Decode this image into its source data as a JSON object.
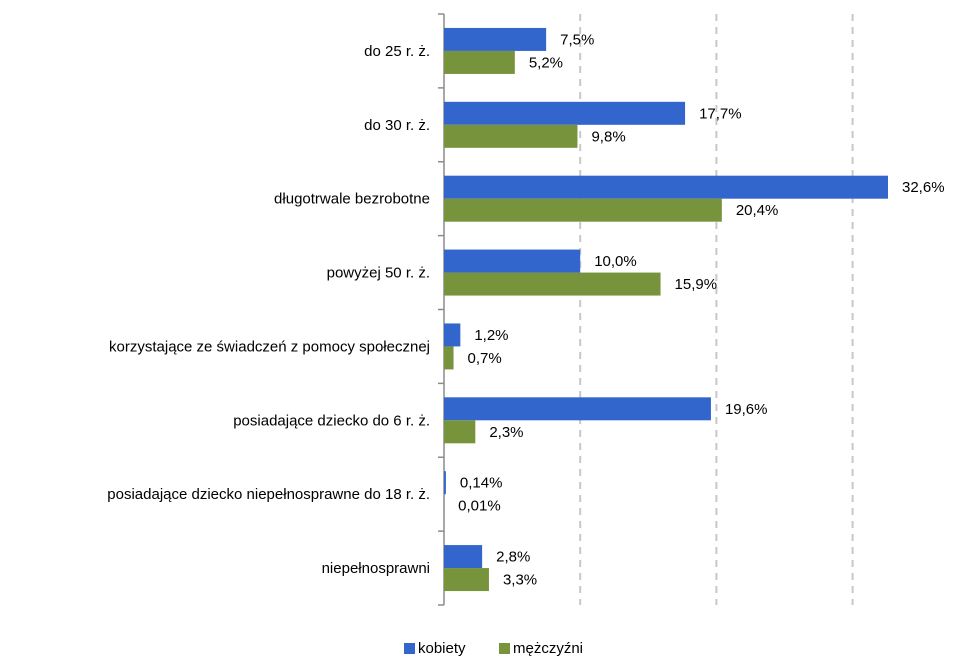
{
  "chart_data": {
    "type": "bar",
    "orientation": "horizontal",
    "categories": [
      "do 25 r. ż.",
      "do 30 r. ż.",
      "długotrwale bezrobotne",
      "powyżej 50 r. ż.",
      "korzystające ze świadczeń z pomocy społecznej",
      "posiadające dziecko do 6 r. ż.",
      "posiadające dziecko niepełnosprawne do 18 r. ż.",
      "niepełnosprawni"
    ],
    "series": [
      {
        "name": "kobiety",
        "color": "#3366cc",
        "values": [
          7.5,
          17.7,
          32.6,
          10.0,
          1.2,
          19.6,
          0.14,
          2.8
        ],
        "labels": [
          "7,5%",
          "17,7%",
          "32,6%",
          "10,0%",
          "1,2%",
          "19,6%",
          "0,14%",
          "2,8%"
        ]
      },
      {
        "name": "mężczyźni",
        "color": "#77933c",
        "values": [
          5.2,
          9.8,
          20.4,
          15.9,
          0.7,
          2.3,
          0.01,
          3.3
        ],
        "labels": [
          "5,2%",
          "9,8%",
          "20,4%",
          "15,9%",
          "0,7%",
          "2,3%",
          "0,01%",
          "3,3%"
        ]
      }
    ],
    "xlim": [
      0,
      32.6
    ],
    "gridlines_at": [
      10,
      20,
      30
    ],
    "grid": true,
    "grid_style": "dashed vertical",
    "legend_position": "bottom",
    "title": "",
    "xlabel": "",
    "ylabel": ""
  }
}
